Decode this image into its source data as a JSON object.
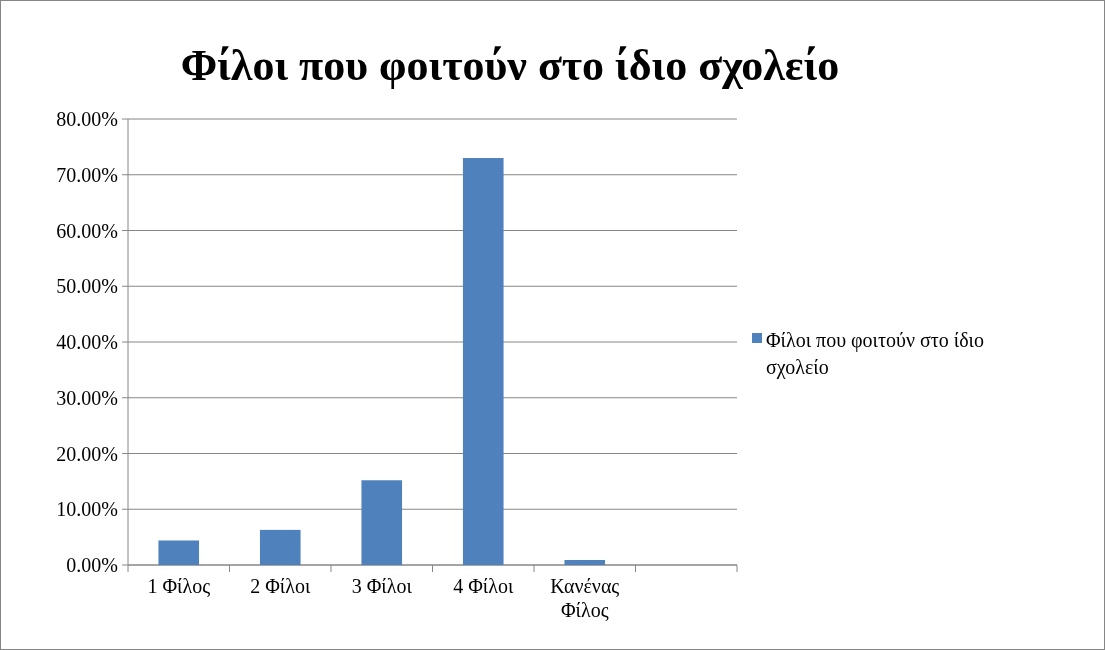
{
  "chart_data": {
    "type": "bar",
    "title": "Φίλοι που φοιτούν στο ίδιο σχολείο",
    "categories": [
      "1 Φίλος",
      "2 Φίλοι",
      "3 Φίλοι",
      "4 Φίλοι",
      "Κανένας Φίλος",
      null
    ],
    "series": [
      {
        "name": "Φίλοι που φοιτούν στο ίδιο σχολείο",
        "color": "#4f81bd",
        "values": [
          4.4,
          6.3,
          15.2,
          73.0,
          0.9,
          null
        ]
      }
    ],
    "ylim": [
      0,
      80
    ],
    "yticks": [
      {
        "value": 0,
        "label": "0.00%"
      },
      {
        "value": 10,
        "label": "10.00%"
      },
      {
        "value": 20,
        "label": "20.00%"
      },
      {
        "value": 30,
        "label": "30.00%"
      },
      {
        "value": 40,
        "label": "40.00%"
      },
      {
        "value": 50,
        "label": "50.00%"
      },
      {
        "value": 60,
        "label": "60.00%"
      },
      {
        "value": 70,
        "label": "70.00%"
      },
      {
        "value": 80,
        "label": "80.00%"
      }
    ],
    "grid": "y",
    "legend": "right"
  }
}
